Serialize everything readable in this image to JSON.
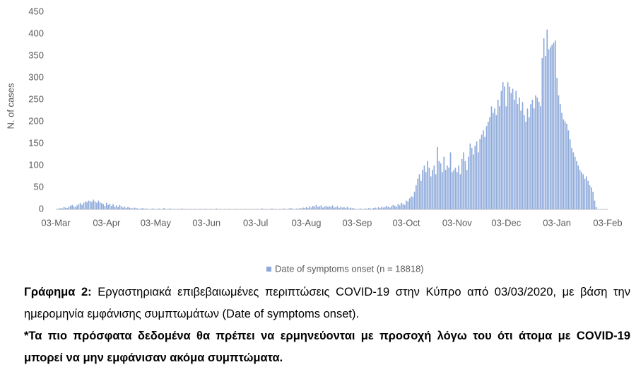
{
  "chart_data": {
    "type": "bar",
    "y_label": "N. of cases",
    "categories": [
      "03-Mar",
      null,
      null,
      null,
      null,
      null,
      null,
      null,
      null,
      null,
      null,
      null,
      null,
      null,
      null,
      null,
      null,
      null,
      null,
      null,
      null,
      null,
      null,
      null,
      null,
      null,
      null,
      null,
      null,
      null,
      null,
      "03-Apr",
      null,
      null,
      null,
      null,
      null,
      null,
      null,
      null,
      null,
      null,
      null,
      null,
      null,
      null,
      null,
      null,
      null,
      null,
      null,
      null,
      null,
      null,
      null,
      null,
      null,
      null,
      null,
      null,
      null,
      "03-May",
      null,
      null,
      null,
      null,
      null,
      null,
      null,
      null,
      null,
      null,
      null,
      null,
      null,
      null,
      null,
      null,
      null,
      null,
      null,
      null,
      null,
      null,
      null,
      null,
      null,
      null,
      null,
      null,
      null,
      null,
      "03-Jun",
      null,
      null,
      null,
      null,
      null,
      null,
      null,
      null,
      null,
      null,
      null,
      null,
      null,
      null,
      null,
      null,
      null,
      null,
      null,
      null,
      null,
      null,
      null,
      null,
      null,
      null,
      null,
      null,
      null,
      "03-Jul",
      null,
      null,
      null,
      null,
      null,
      null,
      null,
      null,
      null,
      null,
      null,
      null,
      null,
      null,
      null,
      null,
      null,
      null,
      null,
      null,
      null,
      null,
      null,
      null,
      null,
      null,
      null,
      null,
      null,
      null,
      "03-Aug",
      null,
      null,
      null,
      null,
      null,
      null,
      null,
      null,
      null,
      null,
      null,
      null,
      null,
      null,
      null,
      null,
      null,
      null,
      null,
      null,
      null,
      null,
      null,
      null,
      null,
      null,
      null,
      null,
      null,
      null,
      "03-Sep",
      null,
      null,
      null,
      null,
      null,
      null,
      null,
      null,
      null,
      null,
      null,
      null,
      null,
      null,
      null,
      null,
      null,
      null,
      null,
      null,
      null,
      null,
      null,
      null,
      null,
      null,
      null,
      null,
      null,
      "03-Oct",
      null,
      null,
      null,
      null,
      null,
      null,
      null,
      null,
      null,
      null,
      null,
      null,
      null,
      null,
      null,
      null,
      null,
      null,
      null,
      null,
      null,
      null,
      null,
      null,
      null,
      null,
      null,
      null,
      null,
      null,
      "03-Nov",
      null,
      null,
      null,
      null,
      null,
      null,
      null,
      null,
      null,
      null,
      null,
      null,
      null,
      null,
      null,
      null,
      null,
      null,
      null,
      null,
      null,
      null,
      null,
      null,
      null,
      null,
      null,
      null,
      null,
      "03-Dec",
      null,
      null,
      null,
      null,
      null,
      null,
      null,
      null,
      null,
      null,
      null,
      null,
      null,
      null,
      null,
      null,
      null,
      null,
      null,
      null,
      null,
      null,
      null,
      null,
      null,
      null,
      null,
      null,
      null,
      null,
      "03-Jan",
      null,
      null,
      null,
      null,
      null,
      null,
      null,
      null,
      null,
      null,
      null,
      null,
      null,
      null,
      null,
      null,
      null,
      null,
      null,
      null,
      null,
      null,
      null,
      null,
      null,
      null,
      null,
      null,
      null,
      null,
      "03-Feb"
    ],
    "series": [
      {
        "name": "Date of symptoms onset (n = 18818)",
        "color": "#8eaadb",
        "values": [
          0,
          1,
          2,
          3,
          2,
          5,
          4,
          3,
          6,
          8,
          10,
          7,
          5,
          9,
          12,
          14,
          10,
          15,
          18,
          16,
          20,
          19,
          17,
          22,
          18,
          15,
          20,
          16,
          14,
          12,
          8,
          15,
          10,
          13,
          8,
          12,
          6,
          9,
          5,
          10,
          7,
          4,
          6,
          3,
          5,
          4,
          3,
          2,
          4,
          3,
          2,
          1,
          2,
          3,
          1,
          2,
          1,
          0,
          1,
          2,
          1,
          1,
          0,
          2,
          1,
          0,
          3,
          1,
          0,
          1,
          2,
          0,
          1,
          0,
          0,
          1,
          0,
          2,
          0,
          1,
          0,
          0,
          1,
          0,
          0,
          1,
          0,
          0,
          1,
          0,
          0,
          1,
          1,
          0,
          0,
          1,
          0,
          0,
          2,
          0,
          1,
          0,
          0,
          1,
          0,
          0,
          1,
          0,
          0,
          0,
          1,
          0,
          0,
          1,
          0,
          0,
          1,
          0,
          0,
          1,
          0,
          0,
          0,
          1,
          0,
          0,
          2,
          0,
          1,
          0,
          0,
          1,
          2,
          0,
          1,
          0,
          0,
          1,
          0,
          2,
          1,
          0,
          1,
          3,
          2,
          1,
          0,
          2,
          1,
          3,
          2,
          4,
          3,
          5,
          3,
          7,
          4,
          8,
          6,
          10,
          5,
          7,
          9,
          4,
          6,
          8,
          5,
          7,
          6,
          9,
          4,
          5,
          7,
          3,
          6,
          4,
          5,
          3,
          6,
          2,
          4,
          3,
          2,
          1,
          0,
          1,
          2,
          1,
          0,
          2,
          1,
          3,
          2,
          1,
          3,
          4,
          2,
          5,
          3,
          6,
          4,
          5,
          8,
          6,
          4,
          7,
          10,
          8,
          6,
          12,
          9,
          15,
          12,
          10,
          20,
          18,
          25,
          30,
          28,
          40,
          55,
          70,
          80,
          65,
          90,
          100,
          85,
          110,
          95,
          75,
          90,
          100,
          80,
          142,
          110,
          105,
          85,
          120,
          90,
          100,
          95,
          130,
          85,
          90,
          95,
          85,
          100,
          80,
          115,
          130,
          110,
          90,
          120,
          150,
          140,
          125,
          145,
          155,
          130,
          160,
          170,
          180,
          165,
          190,
          200,
          210,
          235,
          220,
          230,
          215,
          250,
          235,
          270,
          290,
          280,
          235,
          290,
          280,
          265,
          275,
          250,
          270,
          240,
          255,
          225,
          245,
          215,
          200,
          230,
          210,
          240,
          250,
          230,
          260,
          255,
          245,
          235,
          345,
          390,
          350,
          410,
          365,
          370,
          375,
          380,
          385,
          300,
          260,
          240,
          220,
          205,
          200,
          195,
          180,
          160,
          140,
          130,
          120,
          110,
          100,
          90,
          85,
          80,
          70,
          75,
          65,
          55,
          50,
          40,
          20,
          5,
          null,
          null,
          null,
          null,
          null,
          null,
          null
        ]
      }
    ],
    "ylim": [
      0,
      450
    ],
    "yticks": [
      0,
      50,
      100,
      150,
      200,
      250,
      300,
      350,
      400,
      450
    ],
    "grid": false,
    "legend": "bottom"
  },
  "caption": {
    "label": "Γράφημα 2:",
    "text": "Εργαστηριακά επιβεβαιωμένες περιπτώσεις COVID-19 στην Κύπρο από 03/03/2020, με βάση την ημερομηνία εμφάνισης συμπτωμάτων (Date of symptoms onset)."
  },
  "note": "*Τα πιο πρόσφατα δεδομένα θα πρέπει να ερμηνεύονται με προσοχή λόγω του ότι άτομα με COVID-19 μπορεί να μην εμφάνισαν ακόμα συμπτώματα."
}
